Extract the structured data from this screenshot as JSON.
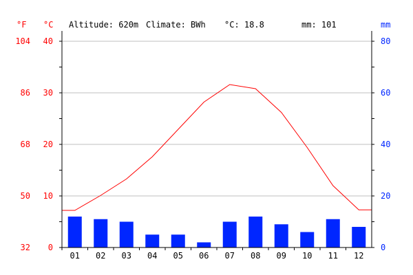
{
  "header": {
    "altitude": "Altitude: 620m",
    "climate": "Climate: BWh",
    "temp_mean": "°C: 18.8",
    "precip_total": "mm: 101"
  },
  "axes": {
    "f_unit": "°F",
    "c_unit": "°C",
    "mm_unit": "mm",
    "f_ticks": [
      "32",
      "50",
      "68",
      "86",
      "104"
    ],
    "c_ticks": [
      "0",
      "10",
      "20",
      "30",
      "40"
    ],
    "mm_ticks": [
      "0",
      "20",
      "40",
      "60",
      "80"
    ]
  },
  "colors": {
    "temperature": "#ff0000",
    "precipitation": "#0026ff",
    "axis": "#000000",
    "grid": "#bfbfbf",
    "mm_axis_text": "#0026ff",
    "temp_axis_text": "#ff0000"
  },
  "chart_data": {
    "type": "bar",
    "categories": [
      "01",
      "02",
      "03",
      "04",
      "05",
      "06",
      "07",
      "08",
      "09",
      "10",
      "11",
      "12"
    ],
    "series": [
      {
        "kind": "line",
        "axis": "temperature_c",
        "values": [
          7.2,
          10.1,
          13.3,
          17.6,
          22.9,
          28.2,
          31.6,
          30.8,
          26.2,
          19.4,
          12.0,
          7.3
        ]
      },
      {
        "kind": "bar",
        "axis": "precipitation_mm",
        "values": [
          12,
          11,
          10,
          5,
          5,
          2,
          10,
          12,
          9,
          6,
          11,
          8
        ]
      }
    ],
    "ylim_temperature_c": [
      0,
      40
    ],
    "ylim_temperature_f": [
      32,
      104
    ],
    "ylim_precipitation_mm": [
      0,
      80
    ],
    "grid": true
  }
}
